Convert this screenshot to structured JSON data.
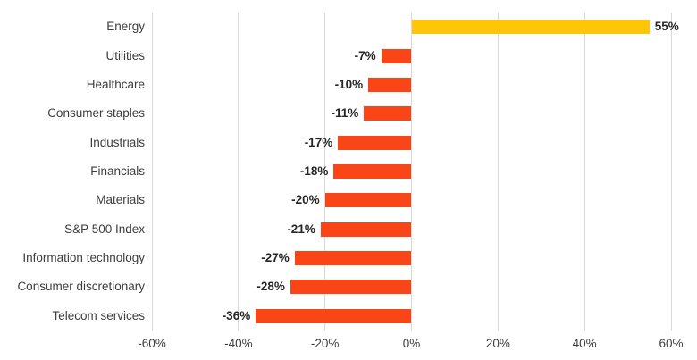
{
  "chart_data": {
    "type": "bar",
    "orientation": "horizontal",
    "title": "",
    "xlabel": "",
    "ylabel": "",
    "categories": [
      "Energy",
      "Utilities",
      "Healthcare",
      "Consumer staples",
      "Industrials",
      "Financials",
      "Materials",
      "S&P 500 Index",
      "Information technology",
      "Consumer discretionary",
      "Telecom services"
    ],
    "values": [
      55,
      -7,
      -10,
      -11,
      -17,
      -18,
      -20,
      -21,
      -27,
      -28,
      -36
    ],
    "value_labels": [
      "55%",
      "-7%",
      "-10%",
      "-11%",
      "-17%",
      "-18%",
      "-20%",
      "-21%",
      "-27%",
      "-28%",
      "-36%"
    ],
    "x_ticks": [
      "-60%",
      "-40%",
      "-20%",
      "0%",
      "20%",
      "40%",
      "60%"
    ],
    "x_tick_values": [
      -60,
      -40,
      -20,
      0,
      20,
      40,
      60
    ],
    "xlim": [
      -60,
      60
    ],
    "grid": "vertical",
    "legend": "none",
    "colors": {
      "positive_bar": "#FDC608",
      "negative_bar": "#FA4616",
      "gridline": "#D9D9D9",
      "value_label": "#262626",
      "axis_label": "#3D3D3D"
    }
  }
}
